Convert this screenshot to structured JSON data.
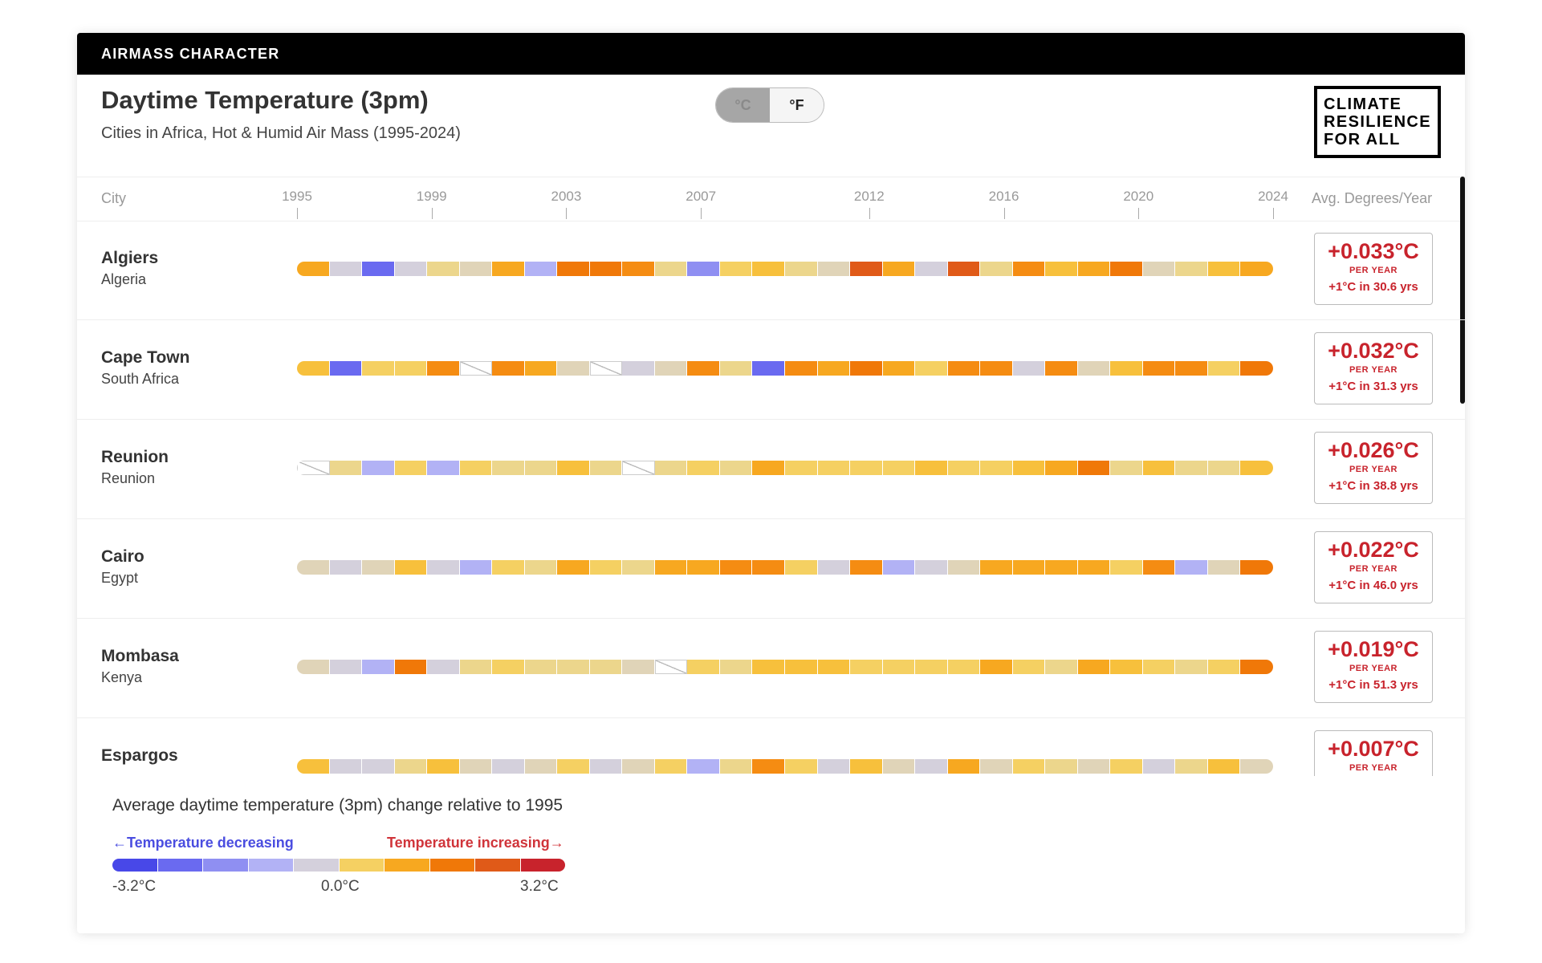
{
  "header": {
    "bar_title": "AIRMASS CHARACTER",
    "title": "Daytime Temperature (3pm)",
    "subtitle": "Cities in Africa, Hot & Humid Air Mass (1995-2024)",
    "unit_celsius": "°C",
    "unit_fahrenheit": "°F",
    "selected_unit": "°C",
    "logo_lines": [
      "CLIMATE",
      "RESILIENCE",
      "FOR ALL"
    ]
  },
  "table": {
    "col_city": "City",
    "col_avg": "Avg. Degrees/Year",
    "year_ticks": [
      "1995",
      "1999",
      "2003",
      "2007",
      "2012",
      "2016",
      "2020",
      "2024"
    ],
    "tick_years": [
      1995,
      1999,
      2003,
      2007,
      2012,
      2016,
      2020,
      2024
    ]
  },
  "colors": {
    "palette": [
      "#4848e8",
      "#6a6af0",
      "#8f8ff2",
      "#b2b2f5",
      "#d4d0dc",
      "#e0d4b8",
      "#ecd68c",
      "#f5d062",
      "#f7c03c",
      "#f7a820",
      "#f58c12",
      "#f07808",
      "#e05a18",
      "#c8232c"
    ],
    "missing": "#ffffff",
    "increase_text": "#c8232c",
    "decrease_text": "#4a4de0"
  },
  "cities": [
    {
      "name": "Algiers",
      "country": "Algeria",
      "trend": "+0.033°C",
      "per_year": "PER YEAR",
      "years_to_1c": "+1°C in 30.6 yrs",
      "cells": [
        9,
        4,
        1,
        4,
        6,
        5,
        9,
        3,
        11,
        11,
        10,
        6,
        2,
        7,
        8,
        6,
        5,
        12,
        9,
        4,
        12,
        6,
        10,
        8,
        9,
        11,
        5,
        6,
        8,
        9
      ]
    },
    {
      "name": "Cape Town",
      "country": "South Africa",
      "trend": "+0.032°C",
      "per_year": "PER YEAR",
      "years_to_1c": "+1°C in 31.3 yrs",
      "cells": [
        8,
        1,
        7,
        7,
        10,
        -1,
        10,
        9,
        5,
        -1,
        4,
        5,
        10,
        6,
        1,
        10,
        9,
        11,
        9,
        7,
        10,
        10,
        4,
        10,
        5,
        8,
        10,
        10,
        7,
        11
      ]
    },
    {
      "name": "Reunion",
      "country": "Reunion",
      "trend": "+0.026°C",
      "per_year": "PER YEAR",
      "years_to_1c": "+1°C in 38.8 yrs",
      "cells": [
        -1,
        6,
        3,
        7,
        3,
        7,
        6,
        6,
        8,
        6,
        -1,
        6,
        7,
        6,
        9,
        7,
        7,
        7,
        7,
        8,
        7,
        7,
        8,
        9,
        11,
        6,
        8,
        6,
        6,
        8
      ]
    },
    {
      "name": "Cairo",
      "country": "Egypt",
      "trend": "+0.022°C",
      "per_year": "PER YEAR",
      "years_to_1c": "+1°C in 46.0 yrs",
      "cells": [
        5,
        4,
        5,
        8,
        4,
        3,
        7,
        6,
        9,
        7,
        6,
        9,
        9,
        10,
        10,
        7,
        4,
        10,
        3,
        4,
        5,
        9,
        9,
        9,
        9,
        7,
        10,
        3,
        5,
        11
      ]
    },
    {
      "name": "Mombasa",
      "country": "Kenya",
      "trend": "+0.019°C",
      "per_year": "PER YEAR",
      "years_to_1c": "+1°C in 51.3 yrs",
      "cells": [
        5,
        4,
        3,
        11,
        4,
        6,
        7,
        6,
        6,
        6,
        5,
        -1,
        7,
        6,
        8,
        8,
        8,
        7,
        7,
        7,
        7,
        9,
        7,
        6,
        9,
        8,
        7,
        6,
        7,
        11
      ]
    },
    {
      "name": "Espargos",
      "country": "",
      "trend": "+0.007°C",
      "per_year": "PER YEAR",
      "years_to_1c": "",
      "cells": [
        8,
        4,
        4,
        6,
        8,
        5,
        4,
        5,
        7,
        4,
        5,
        7,
        3,
        6,
        10,
        7,
        4,
        8,
        5,
        4,
        9,
        5,
        7,
        6,
        5,
        7,
        4,
        6,
        8,
        5
      ]
    }
  ],
  "legend": {
    "title": "Average daytime temperature (3pm) change relative to 1995",
    "decreasing": "←Temperature decreasing",
    "increasing": "Temperature increasing→",
    "min_label": "-3.2°C",
    "mid_label": "0.0°C",
    "max_label": "3.2°C",
    "scale_colors": [
      "#4848e8",
      "#6a6af0",
      "#8f8ff2",
      "#b2b2f5",
      "#d4d0dc",
      "#f5d062",
      "#f7a820",
      "#f07808",
      "#e05a18",
      "#c8232c"
    ]
  }
}
